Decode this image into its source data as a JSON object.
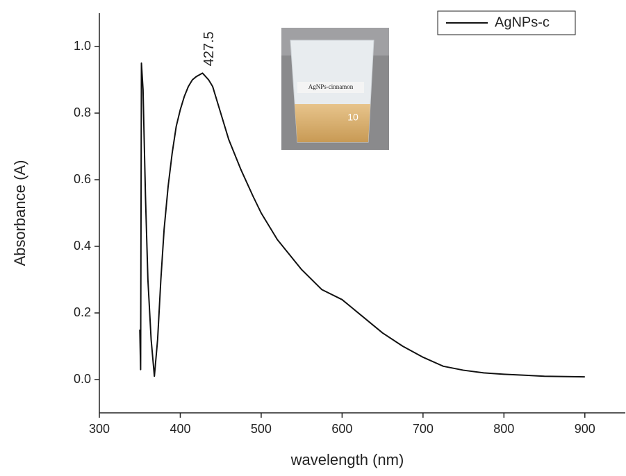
{
  "chart_data": {
    "type": "line",
    "xlabel": "wavelength (nm)",
    "ylabel": "Absorbance (A)",
    "x": [
      350,
      351,
      352,
      354,
      357,
      360,
      364,
      368,
      372,
      376,
      380,
      385,
      390,
      395,
      400,
      405,
      410,
      415,
      420,
      427.5,
      435,
      440,
      450,
      460,
      475,
      490,
      500,
      520,
      550,
      575,
      600,
      625,
      650,
      675,
      700,
      725,
      750,
      775,
      800,
      850,
      900
    ],
    "series": [
      {
        "name": "AgNPs-c",
        "color": "#111111",
        "values": [
          0.15,
          0.03,
          0.95,
          0.87,
          0.55,
          0.3,
          0.12,
          0.01,
          0.12,
          0.3,
          0.45,
          0.58,
          0.68,
          0.76,
          0.81,
          0.85,
          0.88,
          0.9,
          0.91,
          0.92,
          0.9,
          0.88,
          0.8,
          0.72,
          0.63,
          0.55,
          0.5,
          0.42,
          0.33,
          0.27,
          0.24,
          0.19,
          0.14,
          0.1,
          0.067,
          0.04,
          0.028,
          0.02,
          0.016,
          0.01,
          0.008
        ]
      }
    ],
    "xlim": [
      300,
      950
    ],
    "ylim": [
      -0.1,
      1.1
    ],
    "xticks": [
      300,
      400,
      500,
      600,
      700,
      800,
      900
    ],
    "yticks": [
      {
        "value": 0,
        "label": "0.0"
      },
      {
        "value": 0.2,
        "label": "0.2"
      },
      {
        "value": 0.4,
        "label": "0.4"
      },
      {
        "value": 0.6,
        "label": "0.6"
      },
      {
        "value": 0.8,
        "label": "0.8"
      },
      {
        "value": 1,
        "label": "1.0"
      }
    ],
    "annotations": [
      {
        "text": "427.5",
        "x": 427.5,
        "y": 0.92
      }
    ],
    "legend": "upper right",
    "inset": {
      "label": "AgNPs-cinnamon",
      "mark": "10"
    }
  }
}
